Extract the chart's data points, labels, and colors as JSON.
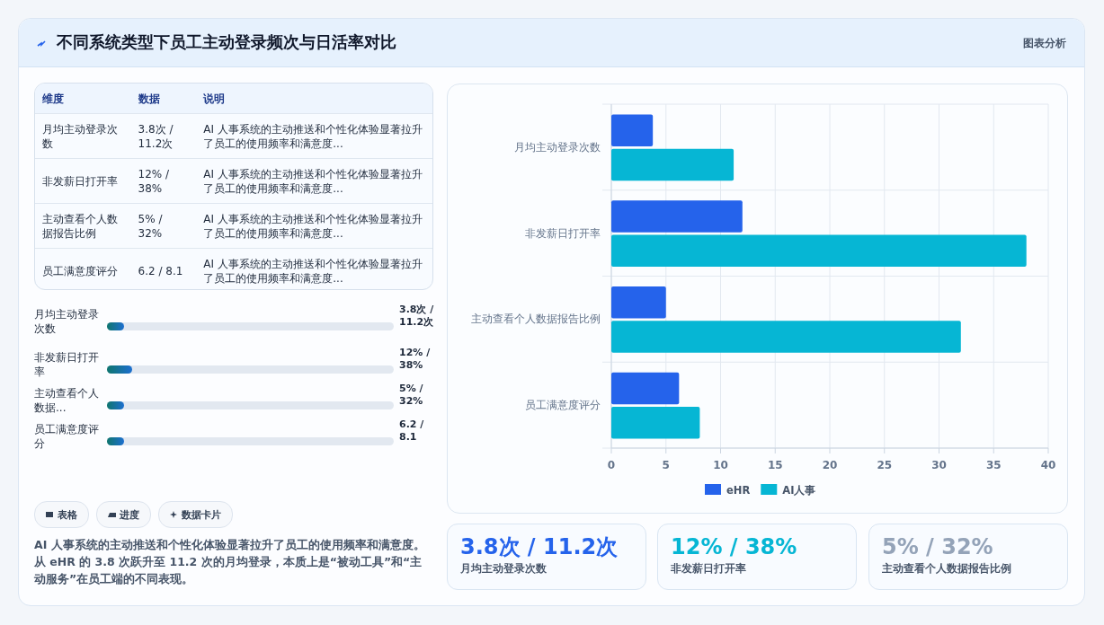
{
  "chart_data": [
    {
      "type": "other",
      "title": "不同系统类型下员工主动登录频次与日活率对比",
      "annotations": [
        "图表分析"
      ]
    },
    {
      "type": "other",
      "annotations": [
        "维度",
        "数据",
        "说明",
        "月均主动登录次数",
        "3.8次 / 11.2次",
        "AI 人事系统的主动推送和个性化体验显著拉升了员工的使用频率和满意度...",
        "非发薪日打开率",
        "12% / 38%",
        "AI 人事系统的主动推送和个性化体验显著拉升了员工的使用频率和满意度...",
        "主动查看个人数据报告比例",
        "5% / 32%",
        "AI 人事系统的主动推送和个性化体验显著拉升了员工的使用频率和满意度...",
        "员工满意度评分",
        "6.2 / 8.1",
        "AI 人事系统的主动推送和个性化体验显著拉升了员工的使用频率和满意度..."
      ]
    },
    {
      "type": "other",
      "annotations": [
        "月均主动登录次数",
        "3.8次 / 11.2次",
        "非发薪日打开率",
        "12% / 38%",
        "主动查看个人数据...",
        "5% / 32%",
        "员工满意度评分",
        "6.2 / 8.1"
      ],
      "color": "#1d6fd0"
    },
    {
      "type": "other",
      "annotations": [
        "表格",
        "进度",
        "数据卡片"
      ]
    },
    {
      "type": "other",
      "annotations": [
        "AI 人事系统的主动推送和个性化体验显著拉升了员工的使用频率和满意度。从 eHR 的 3.8 次跃升至 11.2 次的月均登录，本质上是“被动工具”和“主动服务”在员工端的不同表现。"
      ]
    },
    {
      "type": "bar",
      "orientation": "horizontal",
      "categories": [
        "月均主动登录次数",
        "非发薪日打开率",
        "主动查看个人数据报告比例",
        "员工满意度评分"
      ],
      "series": [
        {
          "name": "eHR",
          "color": "#2563eb",
          "values": [
            3.8,
            12,
            5,
            6.2
          ]
        },
        {
          "name": "AI人事",
          "color": "#06b6d4",
          "values": [
            11.2,
            38,
            32,
            8.1
          ]
        }
      ],
      "xlim": [
        0,
        40
      ],
      "xticks": [
        0,
        5,
        10,
        15,
        20,
        25,
        30,
        35,
        40
      ],
      "grid": true,
      "legend": "bottom"
    },
    {
      "type": "other",
      "title": "3.8次 / 11.2次",
      "subtitle": "月均主动登录次数",
      "color": "#2563eb"
    },
    {
      "type": "other",
      "title": "12% / 38%",
      "subtitle": "非发薪日打开率",
      "color": "#06b6d4"
    },
    {
      "type": "other",
      "title": "5% / 32%",
      "subtitle": "主动查看个人数据报告比例",
      "color": "#94a3b8"
    }
  ]
}
